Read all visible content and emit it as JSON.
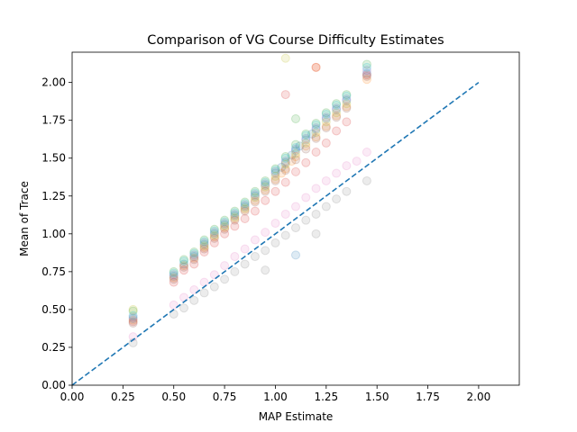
{
  "chart_data": {
    "type": "scatter",
    "title": "Comparison of VG Course Difficulty Estimates",
    "xlabel": "MAP Estimate",
    "ylabel": "Mean of Trace",
    "xlim": [
      0,
      2.2
    ],
    "ylim": [
      0,
      2.2
    ],
    "xticks": [
      "0.00",
      "0.25",
      "0.50",
      "0.75",
      "1.00",
      "1.25",
      "1.50",
      "1.75",
      "2.00"
    ],
    "yticks": [
      "0.00",
      "0.25",
      "0.50",
      "0.75",
      "1.00",
      "1.25",
      "1.50",
      "1.75",
      "2.00"
    ],
    "grid": false,
    "point_alpha": 0.15,
    "reference_line": {
      "x": [
        0,
        2
      ],
      "y": [
        0,
        2
      ],
      "style": "dashed",
      "color": "#1f77b4"
    },
    "series": [
      {
        "color": "#1f77b4",
        "x": [
          0.3,
          0.5,
          0.55,
          0.6,
          0.65,
          0.7,
          0.75,
          0.8,
          0.85,
          0.9,
          0.95,
          1.0,
          1.03,
          1.05,
          1.08,
          1.1,
          1.12,
          1.15,
          1.18,
          1.2,
          1.25,
          1.3,
          1.35,
          1.45,
          1.1
        ],
        "y": [
          0.44,
          0.72,
          0.8,
          0.85,
          0.93,
          1.0,
          1.06,
          1.12,
          1.18,
          1.25,
          1.32,
          1.4,
          1.44,
          1.47,
          1.52,
          1.55,
          1.58,
          1.62,
          1.66,
          1.69,
          1.76,
          1.82,
          1.88,
          2.06,
          0.86
        ]
      },
      {
        "color": "#ff7f0e",
        "x": [
          0.3,
          0.5,
          0.55,
          0.6,
          0.65,
          0.7,
          0.75,
          0.8,
          0.85,
          0.9,
          0.95,
          1.0,
          1.03,
          1.05,
          1.08,
          1.1,
          1.15,
          1.2,
          1.25,
          1.3,
          1.35,
          1.45,
          1.2
        ],
        "y": [
          0.43,
          0.71,
          0.79,
          0.84,
          0.91,
          0.98,
          1.04,
          1.1,
          1.16,
          1.22,
          1.29,
          1.36,
          1.4,
          1.43,
          1.48,
          1.51,
          1.58,
          1.64,
          1.71,
          1.78,
          1.84,
          2.02,
          2.1
        ]
      },
      {
        "color": "#2ca02c",
        "x": [
          0.3,
          0.5,
          0.55,
          0.6,
          0.65,
          0.7,
          0.75,
          0.8,
          0.85,
          0.9,
          0.95,
          1.0,
          1.05,
          1.1,
          1.15,
          1.2,
          1.25,
          1.3,
          1.35,
          1.45,
          1.1
        ],
        "y": [
          0.49,
          0.75,
          0.83,
          0.88,
          0.96,
          1.03,
          1.09,
          1.15,
          1.21,
          1.28,
          1.35,
          1.43,
          1.51,
          1.59,
          1.66,
          1.73,
          1.8,
          1.86,
          1.92,
          2.12,
          1.76
        ]
      },
      {
        "color": "#d62728",
        "x": [
          0.3,
          0.5,
          0.55,
          0.6,
          0.65,
          0.7,
          0.75,
          0.8,
          0.85,
          0.9,
          0.95,
          1.0,
          1.05,
          1.1,
          1.15,
          1.2,
          1.25,
          1.3,
          1.35,
          1.45,
          1.05,
          1.2
        ],
        "y": [
          0.42,
          0.68,
          0.76,
          0.8,
          0.88,
          0.94,
          1.0,
          1.05,
          1.1,
          1.15,
          1.22,
          1.28,
          1.34,
          1.41,
          1.47,
          1.54,
          1.6,
          1.68,
          1.74,
          2.05,
          1.92,
          2.1
        ]
      },
      {
        "color": "#9467bd",
        "x": [
          0.3,
          0.5,
          0.6,
          0.65,
          0.7,
          0.75,
          0.8,
          0.85,
          0.9,
          0.95,
          1.0,
          1.05,
          1.1,
          1.15,
          1.2,
          1.25,
          1.3,
          1.35,
          1.45
        ],
        "y": [
          0.45,
          0.73,
          0.86,
          0.94,
          1.01,
          1.07,
          1.13,
          1.19,
          1.26,
          1.33,
          1.41,
          1.48,
          1.56,
          1.63,
          1.7,
          1.77,
          1.83,
          1.89,
          2.08
        ]
      },
      {
        "color": "#8c564b",
        "x": [
          0.3,
          0.5,
          0.55,
          0.6,
          0.65,
          0.7,
          0.75,
          0.8,
          0.85,
          0.9,
          0.95,
          1.0,
          1.05,
          1.1,
          1.15,
          1.2,
          1.25,
          1.3,
          1.35,
          1.45
        ],
        "y": [
          0.41,
          0.7,
          0.78,
          0.83,
          0.9,
          0.97,
          1.03,
          1.09,
          1.15,
          1.21,
          1.28,
          1.35,
          1.42,
          1.49,
          1.56,
          1.63,
          1.7,
          1.77,
          1.83,
          2.04
        ]
      },
      {
        "color": "#e377c2",
        "x": [
          0.3,
          0.5,
          0.55,
          0.6,
          0.65,
          0.7,
          0.75,
          0.8,
          0.85,
          0.9,
          0.95,
          1.0,
          1.05,
          1.1,
          1.15,
          1.2,
          1.25,
          1.3,
          1.35,
          1.4,
          1.45
        ],
        "y": [
          0.32,
          0.53,
          0.58,
          0.63,
          0.68,
          0.73,
          0.79,
          0.85,
          0.9,
          0.96,
          1.01,
          1.07,
          1.13,
          1.18,
          1.24,
          1.3,
          1.35,
          1.4,
          1.45,
          1.48,
          1.54
        ]
      },
      {
        "color": "#7f7f7f",
        "x": [
          0.3,
          0.5,
          0.55,
          0.6,
          0.65,
          0.7,
          0.75,
          0.8,
          0.85,
          0.9,
          0.95,
          1.0,
          1.05,
          1.1,
          1.15,
          1.2,
          1.25,
          1.3,
          1.35,
          1.45,
          0.95,
          1.2
        ],
        "y": [
          0.28,
          0.47,
          0.51,
          0.56,
          0.61,
          0.65,
          0.7,
          0.75,
          0.8,
          0.85,
          0.89,
          0.94,
          0.99,
          1.04,
          1.09,
          1.13,
          1.18,
          1.23,
          1.28,
          1.35,
          0.76,
          1.0
        ]
      },
      {
        "color": "#bcbd22",
        "x": [
          0.3,
          0.65,
          0.7,
          0.75,
          0.8,
          0.85,
          0.9,
          0.95,
          1.0,
          1.05,
          1.1,
          1.15,
          1.2,
          1.25,
          1.3,
          1.35,
          1.05
        ],
        "y": [
          0.5,
          0.92,
          0.99,
          1.05,
          1.11,
          1.17,
          1.24,
          1.31,
          1.38,
          1.46,
          1.53,
          1.6,
          1.67,
          1.74,
          1.8,
          1.86,
          2.16
        ]
      },
      {
        "color": "#17becf",
        "x": [
          0.3,
          0.5,
          0.55,
          0.6,
          0.65,
          0.7,
          0.75,
          0.8,
          0.85,
          0.9,
          0.95,
          1.0,
          1.05,
          1.1,
          1.15,
          1.2,
          1.25,
          1.3,
          1.35,
          1.45
        ],
        "y": [
          0.46,
          0.74,
          0.82,
          0.87,
          0.95,
          1.02,
          1.08,
          1.14,
          1.2,
          1.27,
          1.34,
          1.42,
          1.5,
          1.57,
          1.65,
          1.72,
          1.79,
          1.85,
          1.91,
          2.1
        ]
      }
    ]
  }
}
